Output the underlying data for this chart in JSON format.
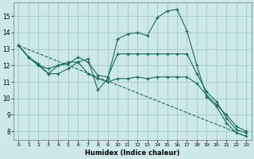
{
  "xlabel": "Humidex (Indice chaleur)",
  "bg_color": "#cce8e8",
  "grid_color": "#aacccc",
  "line_color": "#1a6b5a",
  "xlim": [
    -0.5,
    23.5
  ],
  "ylim": [
    7.5,
    15.8
  ],
  "yticks": [
    8,
    9,
    10,
    11,
    12,
    13,
    14,
    15
  ],
  "xticks": [
    0,
    1,
    2,
    3,
    4,
    5,
    6,
    7,
    8,
    9,
    10,
    11,
    12,
    13,
    14,
    15,
    16,
    17,
    18,
    19,
    20,
    21,
    22,
    23
  ],
  "line1_x": [
    0,
    1,
    2,
    3,
    4,
    5,
    6,
    7,
    8,
    9,
    10,
    11,
    12,
    13,
    14,
    15,
    16,
    17,
    18,
    19,
    20,
    21,
    22,
    23
  ],
  "line1_y": [
    13.2,
    12.5,
    12.1,
    11.5,
    12.0,
    12.2,
    12.2,
    12.4,
    10.5,
    11.2,
    13.6,
    13.9,
    14.0,
    13.8,
    14.9,
    15.3,
    15.4,
    14.1,
    12.0,
    10.1,
    9.5,
    8.5,
    7.9,
    7.7
  ],
  "line2_x": [
    0,
    1,
    2,
    3,
    4,
    5,
    6,
    7,
    8,
    9,
    10,
    11,
    12,
    13,
    14,
    15,
    16,
    17,
    18,
    19,
    20,
    21,
    22,
    23
  ],
  "line2_y": [
    13.2,
    12.5,
    12.0,
    11.8,
    12.0,
    12.1,
    12.5,
    12.2,
    11.4,
    11.3,
    12.7,
    12.7,
    12.7,
    12.7,
    12.7,
    12.7,
    12.7,
    12.7,
    11.5,
    10.4,
    9.8,
    8.8,
    8.1,
    7.9
  ],
  "line3_x": [
    0,
    1,
    2,
    3,
    4,
    5,
    6,
    7,
    8,
    9,
    10,
    11,
    12,
    13,
    14,
    15,
    16,
    17,
    18,
    19,
    20,
    21,
    22,
    23
  ],
  "line3_y": [
    13.2,
    12.5,
    12.0,
    11.5,
    11.5,
    11.8,
    12.2,
    11.5,
    11.2,
    11.0,
    11.2,
    11.2,
    11.3,
    11.2,
    11.3,
    11.3,
    11.3,
    11.3,
    10.9,
    10.2,
    9.6,
    9.0,
    8.3,
    8.0
  ],
  "line4_x": [
    0,
    23
  ],
  "line4_y": [
    13.2,
    7.7
  ]
}
